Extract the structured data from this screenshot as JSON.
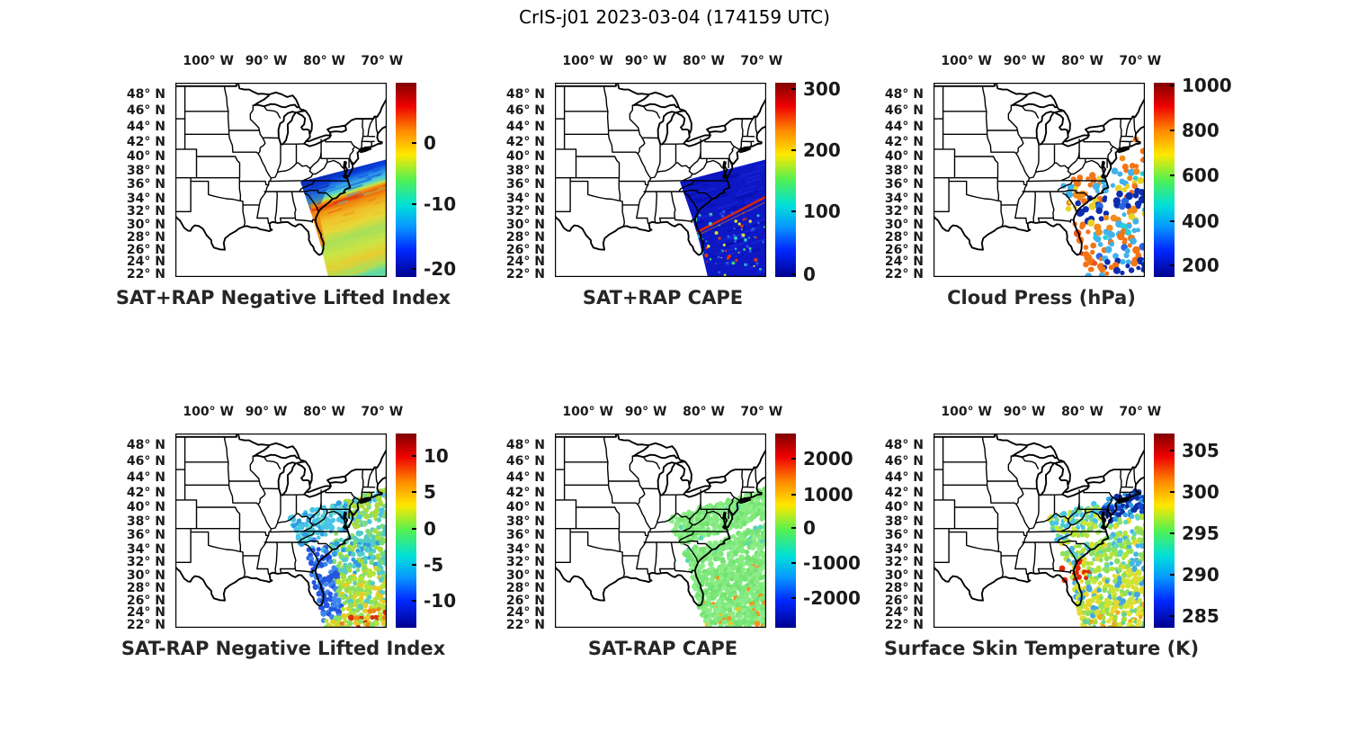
{
  "figure_title": "CrIS-j01 2023-03-04 (174159 UTC)",
  "axes": {
    "lon_ticks": [
      "100° W",
      "90° W",
      "80° W",
      "70° W"
    ],
    "lat_ticks": [
      "48° N",
      "46° N",
      "44° N",
      "42° N",
      "40° N",
      "38° N",
      "36° N",
      "34° N",
      "32° N",
      "30° N",
      "28° N",
      "26° N",
      "24° N",
      "22° N"
    ],
    "lon_range_deg_west": [
      105.7,
      69.2
    ],
    "lat_range_deg_north": [
      21.5,
      49.5
    ],
    "projection": "mercator",
    "region": "Central and eastern United States with state boundaries, Great Lakes and Gulf/Atlantic coasts"
  },
  "chart_data": [
    {
      "name": "sat-plus-rap-negative-lifted-index",
      "type": "heatmap",
      "title": "SAT+RAP Negative Lifted Index",
      "colormap": "jet",
      "colorbar": {
        "ticks": [
          "0",
          "-10",
          "-20"
        ],
        "tick_positions": [
          0.31,
          0.625,
          0.96
        ],
        "range_est": [
          2,
          -22
        ]
      },
      "data_summary": "CrIS swath over the SE U.S. coast and western Atlantic: strongly negative lifted index (-15 to -20, blue) along the NW swath edge near the Carolinas/Virginia, a near-zero (orange-red) band running SW-NE near 32-35N, a bright orange strip along the Florida east coast, and mottled -4 to -12 (yellow/green/cyan) values south to 22N."
    },
    {
      "name": "sat-plus-rap-cape",
      "type": "heatmap",
      "title": "SAT+RAP CAPE",
      "colormap": "jet",
      "colorbar": {
        "ticks": [
          "300",
          "200",
          "100",
          "0"
        ],
        "tick_positions": [
          0.03,
          0.345,
          0.66,
          0.985
        ],
        "range_est": [
          310,
          0
        ]
      },
      "data_summary": "Same swath: CAPE near 0 J/kg (dark blue) nearly everywhere, a narrow high-CAPE (250-300, red) line running SW-NE from the Georgia coast toward 35N offshore, and small scattered 50-250 J/kg speckles south of the line."
    },
    {
      "name": "cloud-press",
      "type": "scatter",
      "title": "Cloud Press (hPa)",
      "colormap": "jet",
      "colorbar": {
        "ticks": [
          "1000",
          "800",
          "600",
          "400",
          "200"
        ],
        "tick_positions": [
          0.015,
          0.245,
          0.477,
          0.713,
          0.94
        ],
        "range_est": [
          1050,
          100
        ]
      },
      "data_summary": "Scattered cloud-top pressure retrievals: SW-NE stripes alternating between low cloud (700-900 hPa, orange) and high cloud (150-450 hPa, blue/cyan), orange values hugging the Florida coast, and mostly 150-350 hPa (dark blue) dots along the southern rows of the swath."
    },
    {
      "name": "sat-minus-rap-negative-lifted-index",
      "type": "scatter",
      "title": "SAT-RAP Negative Lifted Index",
      "colormap": "jet",
      "colorbar": {
        "ticks": [
          "10",
          "5",
          "0",
          "-5",
          "-10"
        ],
        "tick_positions": [
          0.116,
          0.3,
          0.49,
          0.675,
          0.86
        ],
        "range_est": [
          13,
          -13
        ]
      },
      "data_summary": "SAT minus RAP lifted-index difference: -3 to -6 (cyan) north of a diagonal data gap, -5 to -9 (blue) nearest the coast, -1 to +3 (green/yellow) over the open Atlantic, and +5 to +10 (orange-red) clusters near the bottom of the swath."
    },
    {
      "name": "sat-minus-rap-cape",
      "type": "scatter",
      "title": "SAT-RAP CAPE",
      "colormap": "jet",
      "colorbar": {
        "ticks": [
          "2000",
          "1000",
          "0",
          "-1000",
          "-2000"
        ],
        "tick_positions": [
          0.13,
          0.315,
          0.485,
          0.665,
          0.845
        ],
        "range_est": [
          2600,
          -2600
        ]
      },
      "data_summary": "SAT minus RAP CAPE difference: near 0 J/kg (light green) across almost the entire swath, with a few +300 to +800 J/kg (yellow-orange) streaks in the southern half and the same diagonal data gaps."
    },
    {
      "name": "surface-skin-temperature",
      "type": "scatter",
      "title": "Surface Skin Temperature (K)",
      "colormap": "jet",
      "colorbar": {
        "ticks": [
          "305",
          "300",
          "295",
          "290",
          "285"
        ],
        "tick_positions": [
          0.088,
          0.3,
          0.514,
          0.727,
          0.94
        ],
        "range_est": [
          307,
          284
        ]
      },
      "data_summary": "Skin temperature: 285-288 K (dark blue) in the NE corner of the swath off Virginia, 291-295 K (cyan/green) mid-swath, 296-300 K (yellow-green) over the warmer Atlantic south of ~32N, and a few 303-306 K (red) points at the Georgia/Florida coast."
    }
  ],
  "colors": {
    "colormap_top": "#7f0000",
    "colormap_bottom": "#00008f",
    "land_outline": "#000000",
    "text": "#1a1a1a",
    "background": "#ffffff"
  }
}
